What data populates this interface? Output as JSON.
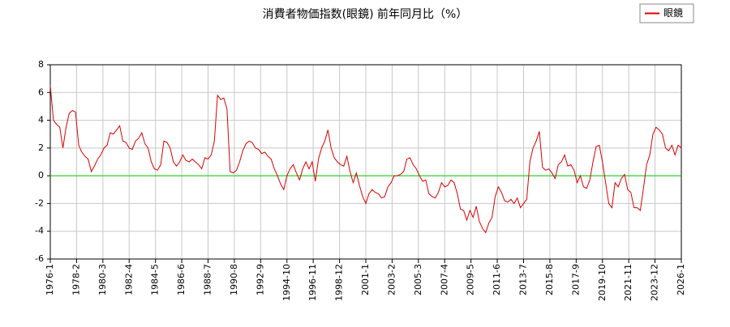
{
  "chart_data": {
    "type": "line",
    "title": "消費者物価指数(眼鏡) 前年同月比（%）",
    "x": [
      "1976-1",
      "1976-4",
      "1976-7",
      "1976-10",
      "1977-1",
      "1977-4",
      "1977-7",
      "1977-10",
      "1978-1",
      "1978-4",
      "1978-7",
      "1978-10",
      "1979-1",
      "1979-4",
      "1979-7",
      "1979-10",
      "1980-1",
      "1980-4",
      "1980-7",
      "1980-10",
      "1981-1",
      "1981-4",
      "1981-7",
      "1981-10",
      "1982-1",
      "1982-4",
      "1982-7",
      "1982-10",
      "1983-1",
      "1983-4",
      "1983-7",
      "1983-10",
      "1984-1",
      "1984-4",
      "1984-7",
      "1984-10",
      "1985-1",
      "1985-4",
      "1985-7",
      "1985-10",
      "1986-1",
      "1986-4",
      "1986-7",
      "1986-10",
      "1987-1",
      "1987-4",
      "1987-7",
      "1987-10",
      "1988-1",
      "1988-4",
      "1988-7",
      "1988-10",
      "1989-1",
      "1989-4",
      "1989-7",
      "1989-10",
      "1990-1",
      "1990-4",
      "1990-7",
      "1990-10",
      "1991-1",
      "1991-4",
      "1991-7",
      "1991-10",
      "1992-1",
      "1992-4",
      "1992-7",
      "1992-10",
      "1993-1",
      "1993-4",
      "1993-7",
      "1993-10",
      "1994-1",
      "1994-4",
      "1994-7",
      "1994-10",
      "1995-1",
      "1995-4",
      "1995-7",
      "1995-10",
      "1996-1",
      "1996-4",
      "1996-7",
      "1996-10",
      "1997-1",
      "1997-4",
      "1997-7",
      "1997-10",
      "1998-1",
      "1998-4",
      "1998-7",
      "1998-10",
      "1999-1",
      "1999-4",
      "1999-7",
      "1999-10",
      "2000-1",
      "2000-4",
      "2000-7",
      "2000-10",
      "2001-1",
      "2001-4",
      "2001-7",
      "2001-10",
      "2002-1",
      "2002-4",
      "2002-7",
      "2002-10",
      "2003-1",
      "2003-4",
      "2003-7",
      "2003-10",
      "2004-1",
      "2004-4",
      "2004-7",
      "2004-10",
      "2005-1",
      "2005-4",
      "2005-7",
      "2005-10",
      "2006-1",
      "2006-4",
      "2006-7",
      "2006-10",
      "2007-1",
      "2007-4",
      "2007-7",
      "2007-10",
      "2008-1",
      "2008-4",
      "2008-7",
      "2008-10",
      "2009-1",
      "2009-4",
      "2009-7",
      "2009-10",
      "2010-1",
      "2010-4",
      "2010-7",
      "2010-10",
      "2011-1",
      "2011-4",
      "2011-7",
      "2011-10",
      "2012-1",
      "2012-4",
      "2012-7",
      "2012-10",
      "2013-1",
      "2013-4",
      "2013-7",
      "2013-10",
      "2014-1",
      "2014-4",
      "2014-7",
      "2014-10",
      "2015-1",
      "2015-4",
      "2015-7",
      "2015-10",
      "2016-1",
      "2016-4",
      "2016-7",
      "2016-10",
      "2017-1",
      "2017-4",
      "2017-7",
      "2017-10",
      "2018-1",
      "2018-4",
      "2018-7",
      "2018-10",
      "2019-1",
      "2019-4",
      "2019-7",
      "2019-10",
      "2020-1",
      "2020-4",
      "2020-7",
      "2020-10",
      "2021-1",
      "2021-4",
      "2021-7",
      "2021-10",
      "2022-1",
      "2022-4",
      "2022-7",
      "2022-10",
      "2023-1",
      "2023-4",
      "2023-7",
      "2023-10",
      "2024-1",
      "2024-4",
      "2024-7",
      "2024-10",
      "2025-1",
      "2025-4",
      "2025-7",
      "2025-10",
      "2026-1"
    ],
    "series": [
      {
        "name": "眼鏡",
        "color": "#dd0000",
        "values": [
          6.5,
          4.0,
          3.7,
          3.5,
          2.0,
          3.5,
          4.5,
          4.7,
          4.6,
          2.2,
          1.7,
          1.4,
          1.2,
          0.3,
          0.7,
          1.2,
          1.5,
          2.0,
          2.2,
          3.1,
          3.0,
          3.3,
          3.6,
          2.5,
          2.4,
          2.0,
          1.9,
          2.5,
          2.7,
          3.1,
          2.3,
          2.0,
          1.0,
          0.5,
          0.4,
          0.8,
          2.5,
          2.4,
          2.0,
          1.0,
          0.7,
          1.0,
          1.5,
          1.1,
          1.0,
          1.2,
          1.0,
          0.8,
          0.5,
          1.3,
          1.2,
          1.5,
          2.5,
          5.8,
          5.5,
          5.6,
          4.8,
          0.3,
          0.2,
          0.4,
          1.0,
          1.8,
          2.3,
          2.5,
          2.4,
          2.0,
          1.9,
          1.6,
          1.7,
          1.4,
          1.2,
          0.5,
          0.0,
          -0.6,
          -1.0,
          0.0,
          0.5,
          0.8,
          0.2,
          -0.3,
          0.5,
          1.0,
          0.5,
          1.0,
          -0.4,
          1.2,
          2.0,
          2.5,
          3.3,
          2.0,
          1.3,
          1.0,
          0.8,
          0.7,
          1.4,
          0.3,
          -0.5,
          0.2,
          -0.7,
          -1.5,
          -2.0,
          -1.3,
          -1.0,
          -1.2,
          -1.3,
          -1.6,
          -1.5,
          -0.8,
          -0.5,
          0.0,
          0.0,
          0.1,
          0.3,
          1.2,
          1.3,
          0.8,
          0.5,
          0.0,
          -0.4,
          -0.3,
          -1.3,
          -1.5,
          -1.6,
          -1.2,
          -0.5,
          -0.8,
          -0.7,
          -0.3,
          -0.5,
          -1.3,
          -2.4,
          -2.5,
          -3.2,
          -2.5,
          -3.0,
          -2.2,
          -3.3,
          -3.8,
          -4.1,
          -3.4,
          -3.0,
          -1.5,
          -0.8,
          -1.2,
          -1.8,
          -1.9,
          -1.7,
          -2.0,
          -1.6,
          -2.3,
          -2.0,
          -1.7,
          1.0,
          2.0,
          2.5,
          3.2,
          0.6,
          0.4,
          0.5,
          0.2,
          -0.2,
          0.8,
          1.0,
          1.5,
          0.7,
          0.8,
          0.4,
          -0.5,
          0.0,
          -0.8,
          -0.9,
          -0.3,
          1.0,
          2.1,
          2.2,
          1.0,
          -0.5,
          -2.0,
          -2.3,
          -0.5,
          -0.8,
          -0.2,
          0.1,
          -1.0,
          -1.2,
          -2.3,
          -2.3,
          -2.5,
          -0.9,
          0.8,
          1.5,
          3.0,
          3.5,
          3.3,
          3.0,
          2.0,
          1.8,
          2.2,
          1.5,
          2.2,
          2.0
        ]
      }
    ],
    "xlim": [
      "1976-1",
      "2026-1"
    ],
    "xticks": [
      "1976-1",
      "1978-2",
      "1980-3",
      "1982-4",
      "1984-5",
      "1986-6",
      "1988-7",
      "1990-8",
      "1992-9",
      "1994-10",
      "1996-11",
      "1998-12",
      "2001-1",
      "2003-2",
      "2005-3",
      "2007-4",
      "2009-5",
      "2011-6",
      "2013-7",
      "2015-8",
      "2017-9",
      "2019-10",
      "2021-11",
      "2023-12",
      "2026-1"
    ],
    "ylim": [
      -6,
      8
    ],
    "yticks": [
      -6,
      -4,
      -2,
      0,
      2,
      4,
      6,
      8
    ],
    "grid": true,
    "reference_line": {
      "value": 0,
      "color": "#00cc00"
    },
    "legend": "top-right"
  }
}
